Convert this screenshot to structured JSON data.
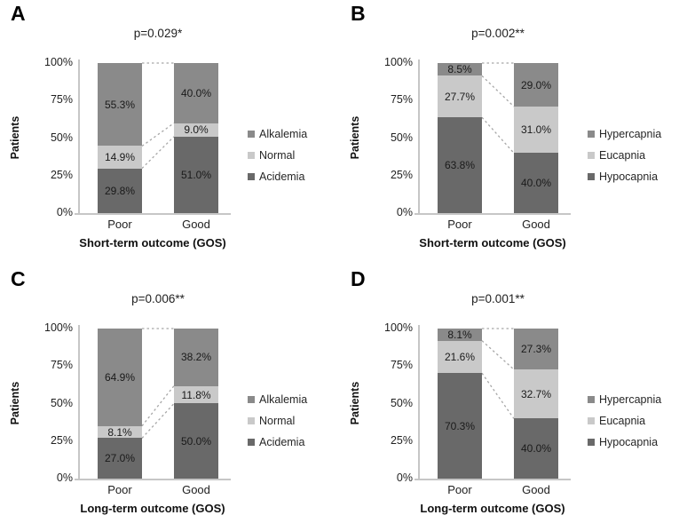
{
  "figure": {
    "background": "#ffffff",
    "axis_color": "#c6c6c6",
    "connector_color": "#a6a6a6",
    "label_text_color": "#1a1a1a",
    "segment_colors": {
      "top": "#8a8a8a",
      "middle": "#c9c9c9",
      "bottom": "#696969"
    }
  },
  "chart_data": [
    {
      "panel": "A",
      "type": "bar",
      "stacked": true,
      "title": "p=0.029*",
      "xlabel": "Short-term outcome (GOS)",
      "ylabel": "Patients",
      "categories": [
        "Poor",
        "Good"
      ],
      "ytick_labels": [
        "100%",
        "75%",
        "50%",
        "25%",
        "0%"
      ],
      "ylim": [
        0,
        100
      ],
      "grid": false,
      "legend_position": "right",
      "series": [
        {
          "name": "Alkalemia",
          "color": "#8a8a8a",
          "values": [
            55.3,
            40.0
          ]
        },
        {
          "name": "Normal",
          "color": "#c9c9c9",
          "values": [
            14.9,
            9.0
          ]
        },
        {
          "name": "Acidemia",
          "color": "#696969",
          "values": [
            29.8,
            51.0
          ]
        }
      ]
    },
    {
      "panel": "B",
      "type": "bar",
      "stacked": true,
      "title": "p=0.002**",
      "xlabel": "Short-term outcome (GOS)",
      "ylabel": "Patients",
      "categories": [
        "Poor",
        "Good"
      ],
      "ytick_labels": [
        "100%",
        "75%",
        "50%",
        "25%",
        "0%"
      ],
      "ylim": [
        0,
        100
      ],
      "grid": false,
      "legend_position": "right",
      "series": [
        {
          "name": "Hypercapnia",
          "color": "#8a8a8a",
          "values": [
            8.5,
            29.0
          ]
        },
        {
          "name": "Eucapnia",
          "color": "#c9c9c9",
          "values": [
            27.7,
            31.0
          ]
        },
        {
          "name": "Hypocapnia",
          "color": "#696969",
          "values": [
            63.8,
            40.0
          ]
        }
      ]
    },
    {
      "panel": "C",
      "type": "bar",
      "stacked": true,
      "title": "p=0.006**",
      "xlabel": "Long-term outcome (GOS)",
      "ylabel": "Patients",
      "categories": [
        "Poor",
        "Good"
      ],
      "ytick_labels": [
        "100%",
        "75%",
        "50%",
        "25%",
        "0%"
      ],
      "ylim": [
        0,
        100
      ],
      "grid": false,
      "legend_position": "right",
      "series": [
        {
          "name": "Alkalemia",
          "color": "#8a8a8a",
          "values": [
            64.9,
            38.2
          ]
        },
        {
          "name": "Normal",
          "color": "#c9c9c9",
          "values": [
            8.1,
            11.8
          ]
        },
        {
          "name": "Acidemia",
          "color": "#696969",
          "values": [
            27.0,
            50.0
          ]
        }
      ]
    },
    {
      "panel": "D",
      "type": "bar",
      "stacked": true,
      "title": "p=0.001**",
      "xlabel": "Long-term outcome (GOS)",
      "ylabel": "Patients",
      "categories": [
        "Poor",
        "Good"
      ],
      "ytick_labels": [
        "100%",
        "75%",
        "50%",
        "25%",
        "0%"
      ],
      "ylim": [
        0,
        100
      ],
      "grid": false,
      "legend_position": "right",
      "series": [
        {
          "name": "Hypercapnia",
          "color": "#8a8a8a",
          "values": [
            8.1,
            27.3
          ]
        },
        {
          "name": "Eucapnia",
          "color": "#c9c9c9",
          "values": [
            21.6,
            32.7
          ]
        },
        {
          "name": "Hypocapnia",
          "color": "#696969",
          "values": [
            70.3,
            40.0
          ]
        }
      ]
    }
  ]
}
